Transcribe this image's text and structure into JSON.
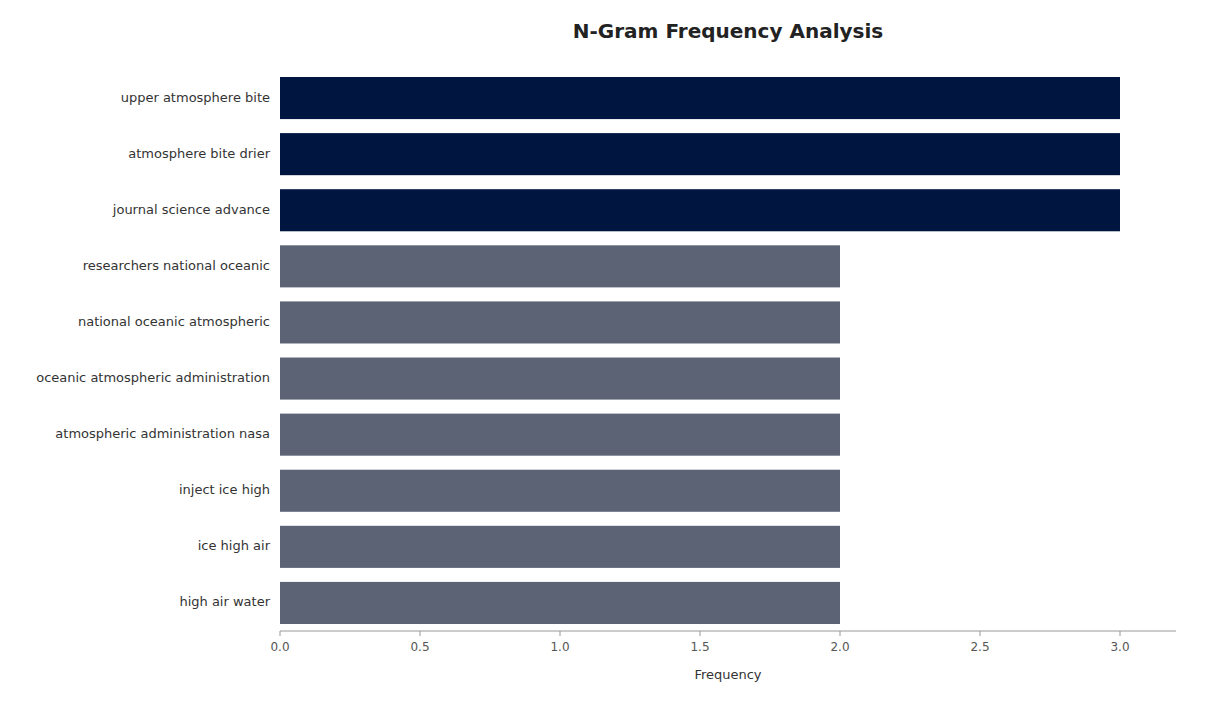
{
  "chart_data": {
    "type": "bar",
    "orientation": "horizontal",
    "title": "N-Gram Frequency Analysis",
    "xlabel": "Frequency",
    "categories": [
      "high air water",
      "ice high air",
      "inject ice high",
      "atmospheric administration nasa",
      "oceanic atmospheric administration",
      "national oceanic atmospheric",
      "researchers national oceanic",
      "journal science advance",
      "atmosphere bite drier",
      "upper atmosphere bite"
    ],
    "values": [
      2,
      2,
      2,
      2,
      2,
      2,
      2,
      3,
      3,
      3
    ],
    "colors": [
      "#5c6374",
      "#5c6374",
      "#5c6374",
      "#5c6374",
      "#5c6374",
      "#5c6374",
      "#5c6374",
      "#001540",
      "#001540",
      "#001540"
    ],
    "xlim": [
      0,
      3.2
    ],
    "xticks": [
      {
        "value": 0,
        "label": "0.0"
      },
      0.5,
      {
        "value": 1,
        "label": "1.0"
      },
      1.5,
      {
        "value": 2,
        "label": "2.0"
      },
      2.5,
      {
        "value": 3,
        "label": "3.0"
      }
    ],
    "grid": false
  }
}
